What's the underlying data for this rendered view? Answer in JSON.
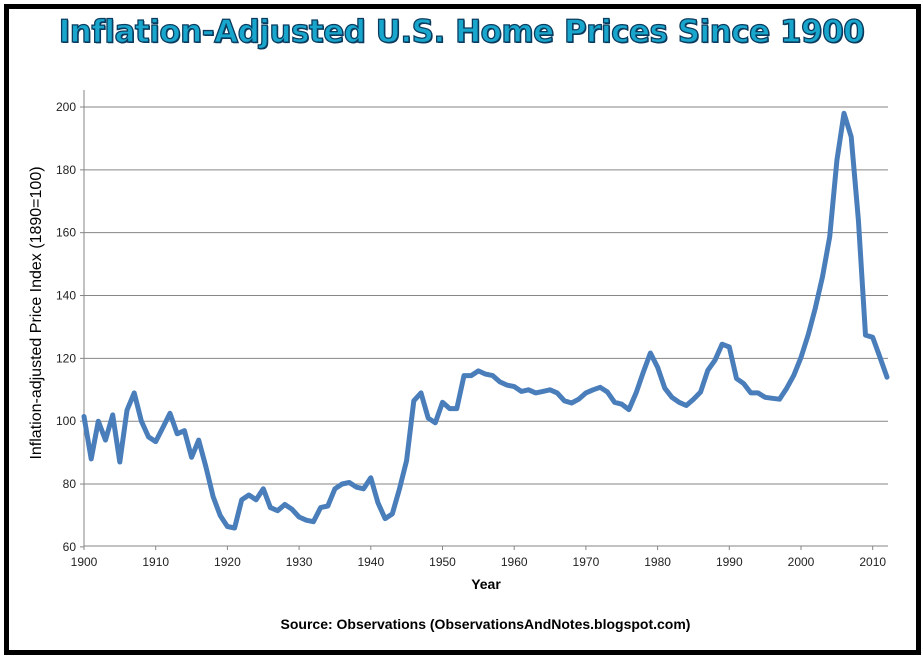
{
  "chart_data": {
    "type": "line",
    "title": "Inflation-Adjusted U.S. Home Prices Since 1900",
    "xlabel": "Year",
    "ylabel": "Inflation-adjusted  Price Index (1890=100)",
    "source": "Source: Observations  (ObservationsAndNotes.blogspot.com)",
    "xlim": [
      1900,
      2012
    ],
    "ylim": [
      60,
      200
    ],
    "x_ticks": [
      1900,
      1910,
      1920,
      1930,
      1940,
      1950,
      1960,
      1970,
      1980,
      1990,
      2000,
      2010
    ],
    "y_ticks": [
      60,
      80,
      100,
      120,
      140,
      160,
      180,
      200
    ],
    "grid": "horizontal",
    "legend": "none",
    "colors": {
      "line": "#4a7ebb",
      "grid": "#868686",
      "title": "#19a6cc"
    },
    "series": [
      {
        "name": "Price Index",
        "x": [
          1900,
          1901,
          1902,
          1903,
          1904,
          1905,
          1906,
          1907,
          1908,
          1909,
          1910,
          1911,
          1912,
          1913,
          1914,
          1915,
          1916,
          1917,
          1918,
          1919,
          1920,
          1921,
          1922,
          1923,
          1924,
          1925,
          1926,
          1927,
          1928,
          1929,
          1930,
          1931,
          1932,
          1933,
          1934,
          1935,
          1936,
          1937,
          1938,
          1939,
          1940,
          1941,
          1942,
          1943,
          1944,
          1945,
          1946,
          1947,
          1948,
          1949,
          1950,
          1951,
          1952,
          1953,
          1954,
          1955,
          1956,
          1957,
          1958,
          1959,
          1960,
          1961,
          1962,
          1963,
          1964,
          1965,
          1966,
          1967,
          1968,
          1969,
          1970,
          1971,
          1972,
          1973,
          1974,
          1975,
          1976,
          1977,
          1978,
          1979,
          1980,
          1981,
          1982,
          1983,
          1984,
          1985,
          1986,
          1987,
          1988,
          1989,
          1990,
          1991,
          1992,
          1993,
          1994,
          1995,
          1996,
          1997,
          1998,
          1999,
          2000,
          2001,
          2002,
          2003,
          2004,
          2005,
          2006,
          2007,
          2008,
          2009,
          2010,
          2011,
          2012
        ],
        "values": [
          101.5,
          88,
          100,
          94,
          102,
          87,
          103.5,
          109,
          100,
          95,
          93.5,
          98,
          102.5,
          96,
          97,
          88.5,
          94,
          85.5,
          76,
          70,
          66.5,
          66,
          75,
          76.5,
          75,
          78.5,
          72.5,
          71.5,
          73.5,
          72,
          69.5,
          68.5,
          68,
          72.5,
          73,
          78.5,
          80,
          80.5,
          79,
          78.5,
          82,
          74,
          69,
          70.5,
          78.5,
          87.5,
          106.5,
          109,
          101,
          99.5,
          106,
          104,
          104,
          114.5,
          114.5,
          116,
          115,
          114.5,
          112.5,
          111.5,
          111,
          109.5,
          110,
          109,
          109.5,
          110,
          109,
          106.5,
          105.8,
          107,
          109,
          110,
          110.8,
          109.3,
          106,
          105.4,
          103.7,
          109,
          115.6,
          121.7,
          117.2,
          110.5,
          107.6,
          106,
          105,
          107,
          109.3,
          116.2,
          119.4,
          124.5,
          123.6,
          113.6,
          112,
          109,
          109,
          107.6,
          107.3,
          107,
          110.5,
          114.6,
          120.3,
          127.5,
          136,
          146,
          158.7,
          183,
          198,
          190.5,
          164,
          127.4,
          126.7,
          120.4,
          114
        ]
      }
    ]
  }
}
